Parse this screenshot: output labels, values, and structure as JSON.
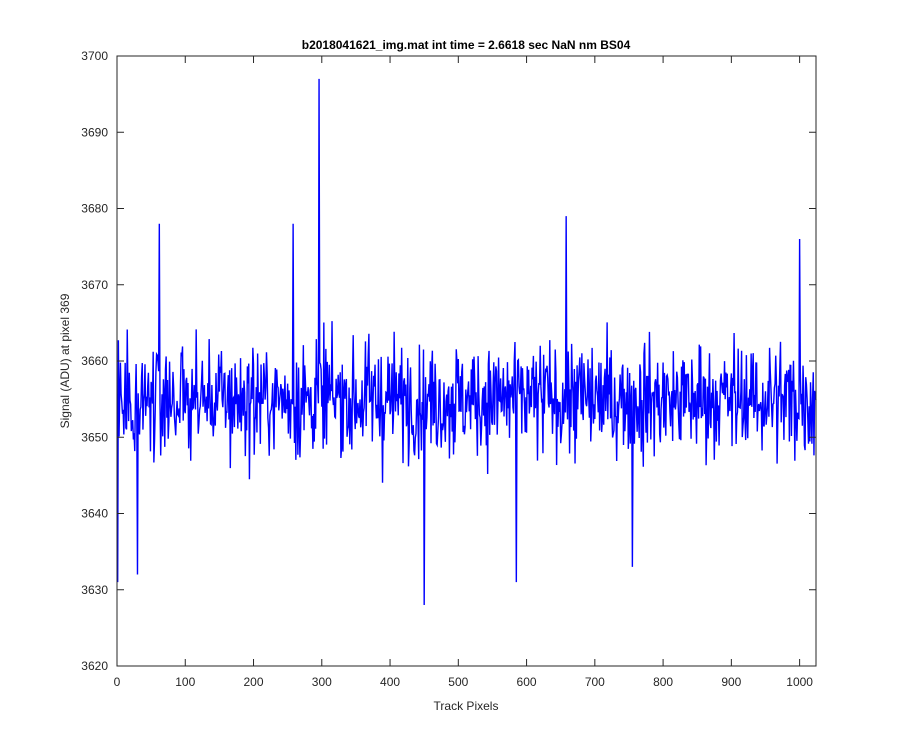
{
  "chart_data": {
    "type": "line",
    "title": "b2018041621_img.mat int time = 2.6618 sec  NaN nm BS04",
    "xlabel": "Track Pixels",
    "ylabel": "Signal (ADU) at pixel 369",
    "xlim": [
      0,
      1024
    ],
    "ylim": [
      3620,
      3700
    ],
    "xticks": [
      0,
      100,
      200,
      300,
      400,
      500,
      600,
      700,
      800,
      900,
      1000
    ],
    "yticks": [
      3620,
      3630,
      3640,
      3650,
      3660,
      3670,
      3680,
      3690,
      3700
    ],
    "grid": false,
    "box": true,
    "series": [
      {
        "color": "#0000ff",
        "x_start": 1,
        "x_step": 1,
        "y_mean": 3655,
        "y_noise_amplitude": 7,
        "notable_points": [
          {
            "x": 1,
            "y": 3631
          },
          {
            "x": 30,
            "y": 3632
          },
          {
            "x": 62,
            "y": 3678
          },
          {
            "x": 258,
            "y": 3678
          },
          {
            "x": 296,
            "y": 3697
          },
          {
            "x": 450,
            "y": 3628
          },
          {
            "x": 585,
            "y": 3631
          },
          {
            "x": 658,
            "y": 3679
          },
          {
            "x": 755,
            "y": 3633
          },
          {
            "x": 1000,
            "y": 3676
          }
        ]
      }
    ]
  }
}
